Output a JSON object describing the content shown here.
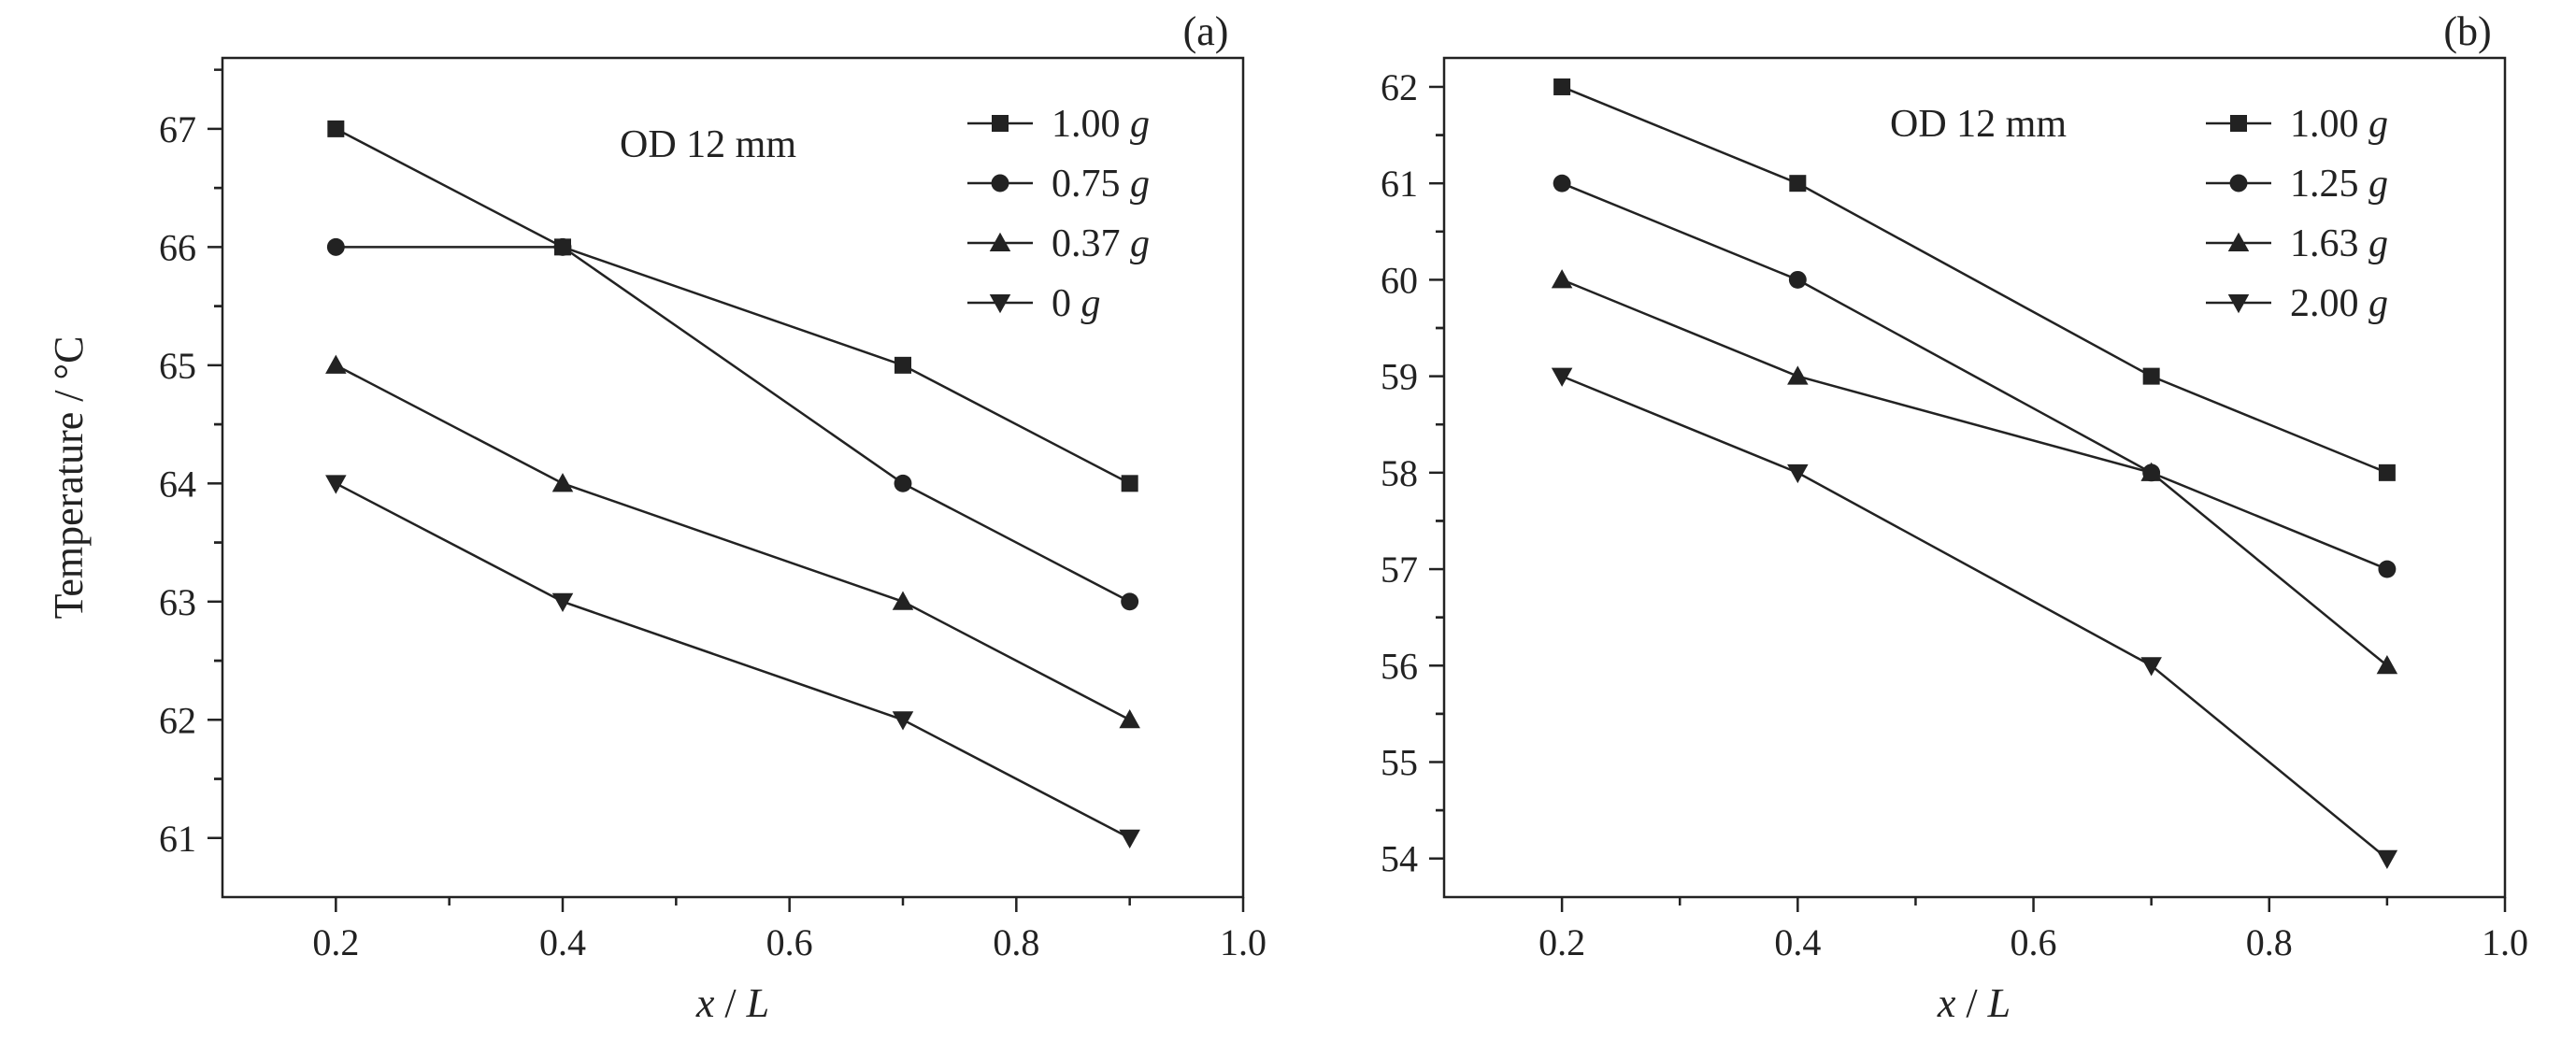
{
  "chart_data": [
    {
      "type": "line",
      "panel_label": "(a)",
      "annotation": "OD 12 mm",
      "xlabel_var": "x",
      "xlabel_sep": " / ",
      "xlabel_unit": "L",
      "ylabel": "Temperature / °C",
      "xlim": [
        0.1,
        1.0
      ],
      "ylim": [
        60.5,
        67.6
      ],
      "xticks": [
        "0.2",
        "0.4",
        "0.6",
        "0.8",
        "1.0"
      ],
      "yticks": [
        "61",
        "62",
        "63",
        "64",
        "65",
        "66",
        "67"
      ],
      "x": [
        0.2,
        0.4,
        0.7,
        0.9
      ],
      "legend_position": "top-right",
      "series": [
        {
          "name_value": "1.00",
          "name_unit": "g",
          "marker": "square",
          "values": [
            67,
            66,
            65,
            64
          ]
        },
        {
          "name_value": "0.75",
          "name_unit": "g",
          "marker": "circle",
          "values": [
            66,
            66,
            64,
            63
          ]
        },
        {
          "name_value": "0.37",
          "name_unit": "g",
          "marker": "triangle-up",
          "values": [
            65,
            64,
            63,
            62
          ]
        },
        {
          "name_value": "0",
          "name_unit": "g",
          "marker": "triangle-down",
          "values": [
            64,
            63,
            62,
            61
          ]
        }
      ]
    },
    {
      "type": "line",
      "panel_label": "(b)",
      "annotation": "OD 12 mm",
      "xlabel_var": "x",
      "xlabel_sep": " / ",
      "xlabel_unit": "L",
      "ylabel": "",
      "xlim": [
        0.1,
        1.0
      ],
      "ylim": [
        53.6,
        62.3
      ],
      "xticks": [
        "0.2",
        "0.4",
        "0.6",
        "0.8",
        "1.0"
      ],
      "yticks": [
        "54",
        "55",
        "56",
        "57",
        "58",
        "59",
        "60",
        "61",
        "62"
      ],
      "x": [
        0.2,
        0.4,
        0.7,
        0.9
      ],
      "legend_position": "top-right",
      "series": [
        {
          "name_value": "1.00",
          "name_unit": "g",
          "marker": "square",
          "values": [
            62,
            61,
            59,
            58
          ]
        },
        {
          "name_value": "1.25",
          "name_unit": "g",
          "marker": "circle",
          "values": [
            61,
            60,
            58,
            57
          ]
        },
        {
          "name_value": "1.63",
          "name_unit": "g",
          "marker": "triangle-up",
          "values": [
            60,
            59,
            58,
            56
          ]
        },
        {
          "name_value": "2.00",
          "name_unit": "g",
          "marker": "triangle-down",
          "values": [
            59,
            58,
            56,
            54
          ]
        }
      ]
    }
  ]
}
